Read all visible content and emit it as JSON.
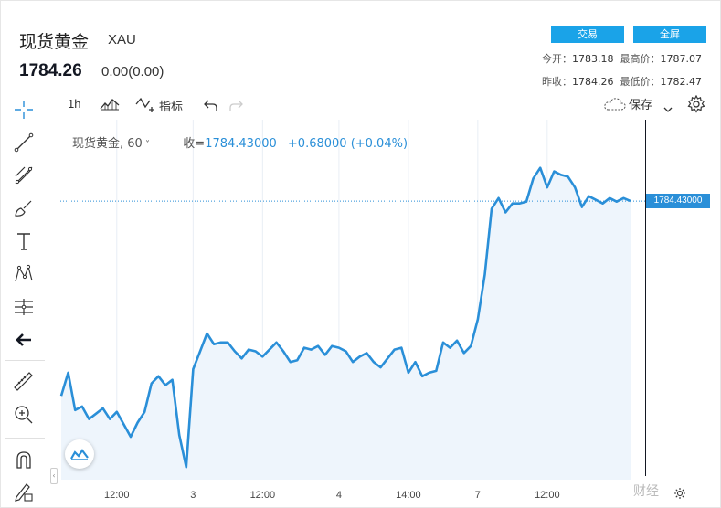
{
  "header": {
    "title": "现货黄金",
    "symbol": "XAU",
    "price": "1784.26",
    "change": "0.00(0.00)",
    "trade_button": "交易",
    "fullscreen_button": "全屏",
    "open_label": "今开：",
    "open_value": "1783.18",
    "high_label": "最高价：",
    "high_value": "1787.07",
    "prev_close_label": "昨收：",
    "prev_close_value": "1784.26",
    "low_label": "最低价：",
    "low_value": "1782.47"
  },
  "toolbar": {
    "interval": "1h",
    "indicators_label": "指标",
    "save_label": "保存"
  },
  "legend": {
    "name": "现货黄金, 60",
    "close_label": "收=",
    "close_value": "1784.43000",
    "change": "+0.68000 (+0.04%)"
  },
  "price_tag": "1784.43000",
  "watermark": "财经",
  "colors": {
    "line": "#2a8fd8",
    "accent": "#1aa3e8",
    "fill": "#eef5fc"
  },
  "chart_data": {
    "type": "area",
    "x_tick_labels": [
      "12:00",
      "3",
      "12:00",
      "4",
      "14:00",
      "7",
      "12:00"
    ],
    "x_tick_index": [
      8,
      19,
      29,
      40,
      50,
      60,
      70
    ],
    "y_range": [
      1769.0,
      1789.0
    ],
    "last_value": 1784.43,
    "values": [
      1773.5,
      1774.8,
      1772.7,
      1772.9,
      1772.2,
      1772.5,
      1772.8,
      1772.2,
      1772.6,
      1771.9,
      1771.2,
      1772.0,
      1772.6,
      1774.2,
      1774.6,
      1774.1,
      1774.4,
      1771.3,
      1769.5,
      1775.0,
      1776.0,
      1777.0,
      1776.4,
      1776.5,
      1776.5,
      1776.0,
      1775.6,
      1776.1,
      1776.0,
      1775.7,
      1776.1,
      1776.5,
      1776.0,
      1775.4,
      1775.5,
      1776.2,
      1776.1,
      1776.3,
      1775.8,
      1776.3,
      1776.2,
      1776.0,
      1775.4,
      1775.7,
      1775.9,
      1775.4,
      1775.1,
      1775.6,
      1776.1,
      1776.2,
      1774.8,
      1775.4,
      1774.6,
      1774.8,
      1774.9,
      1776.5,
      1776.2,
      1776.6,
      1775.9,
      1776.3,
      1777.8,
      1780.3,
      1784.0,
      1784.6,
      1783.8,
      1784.3,
      1784.3,
      1784.4,
      1785.7,
      1786.3,
      1785.2,
      1786.1,
      1785.9,
      1785.8,
      1785.2,
      1784.1,
      1784.7,
      1784.5,
      1784.3,
      1784.6,
      1784.4,
      1784.6,
      1784.43
    ]
  }
}
